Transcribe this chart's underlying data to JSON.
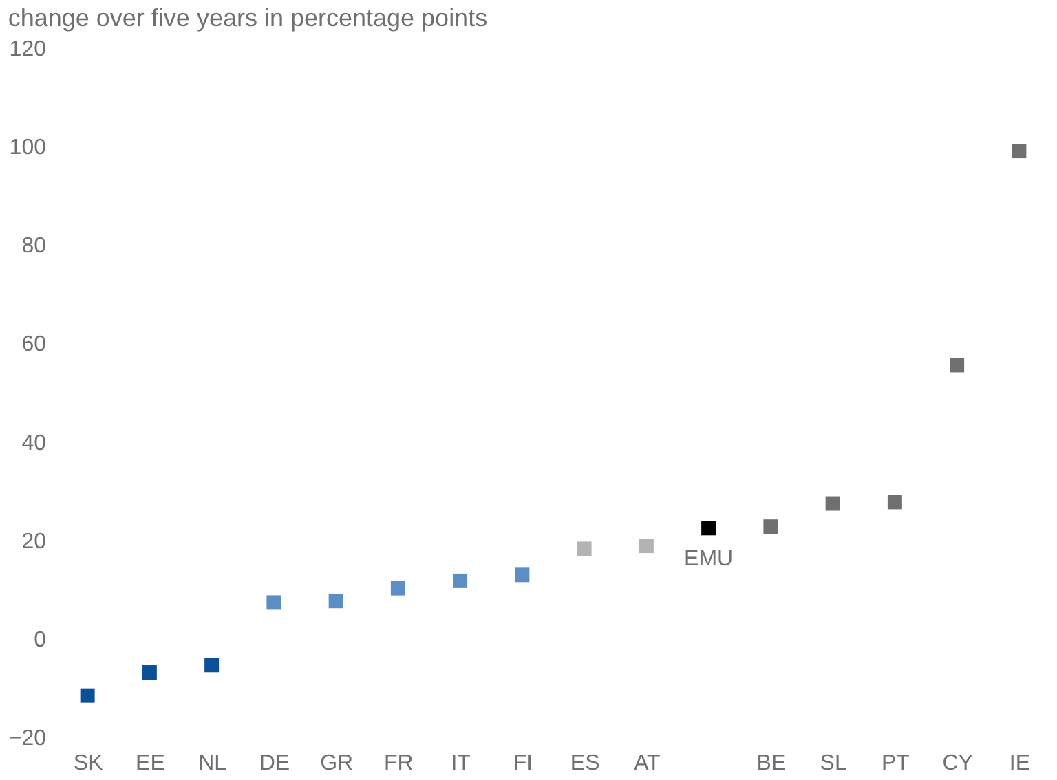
{
  "chart_data": {
    "type": "scatter",
    "title": "change over five years in percentage points",
    "categories": [
      "SK",
      "EE",
      "NL",
      "DE",
      "GR",
      "FR",
      "IT",
      "FI",
      "ES",
      "AT",
      null,
      "BE",
      "SL",
      "PT",
      "CY",
      "IE"
    ],
    "values": [
      -11.5,
      -6.8,
      -5.3,
      7.4,
      7.7,
      10.3,
      11.8,
      13,
      18.3,
      18.9,
      22.5,
      22.8,
      27.5,
      27.8,
      55.6,
      99.1
    ],
    "colors": [
      "#0b4f96",
      "#0b4f96",
      "#0b4f96",
      "#5b8ec4",
      "#5b8ec4",
      "#5b8ec4",
      "#5b8ec4",
      "#5b8ec4",
      "#b3b3b3",
      "#b3b3b3",
      "#000000",
      "#707070",
      "#707070",
      "#707070",
      "#707070",
      "#707070"
    ],
    "marker": "square",
    "ylim": [
      -20,
      120
    ],
    "yticks": [
      -20,
      0,
      20,
      40,
      60,
      80,
      100,
      120
    ],
    "grid": false,
    "annotations": [
      "EMU"
    ]
  }
}
